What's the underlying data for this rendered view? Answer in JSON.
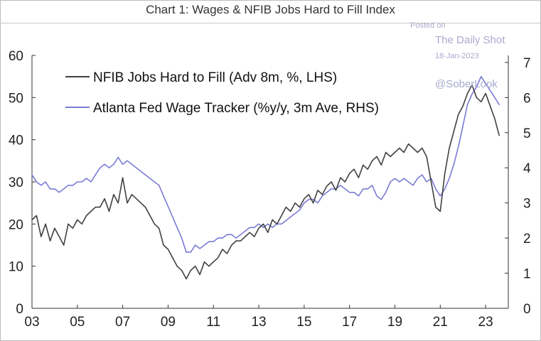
{
  "watermark": {
    "posted_on": "Posted on",
    "source": "The Daily Shot",
    "date": "18-Jan-2023",
    "handle": "@SoberLook"
  },
  "chart_data": {
    "type": "line",
    "title": "Chart 1: Wages & NFIB Jobs Hard to Fill Index",
    "x_range": [
      2003.0,
      2024.0
    ],
    "x_ticks": [
      2003,
      2005,
      2007,
      2009,
      2011,
      2013,
      2015,
      2017,
      2019,
      2021,
      2023
    ],
    "x_tick_labels": [
      "03",
      "05",
      "07",
      "09",
      "11",
      "13",
      "15",
      "17",
      "19",
      "21",
      "23"
    ],
    "y_left": {
      "range": [
        0,
        60
      ],
      "ticks": [
        0,
        10,
        20,
        30,
        40,
        50,
        60
      ],
      "tick_labels": [
        "0",
        "10",
        "20",
        "30",
        "40",
        "50",
        "60"
      ]
    },
    "y_right": {
      "range": [
        0,
        7.2
      ],
      "ticks": [
        0,
        1,
        2,
        3,
        4,
        5,
        6,
        7
      ],
      "tick_labels": [
        "0",
        "1",
        "2",
        "3",
        "4",
        "5",
        "6",
        "7"
      ]
    },
    "legend_position": "top-left",
    "series": [
      {
        "name": "NFIB Jobs Hard to Fill (Adv 8m, %, LHS)",
        "axis": "left",
        "color": "#404040",
        "x": [
          2003.0,
          2003.2,
          2003.4,
          2003.6,
          2003.8,
          2004.0,
          2004.2,
          2004.4,
          2004.6,
          2004.8,
          2005.0,
          2005.2,
          2005.4,
          2005.6,
          2005.8,
          2006.0,
          2006.2,
          2006.4,
          2006.6,
          2006.8,
          2007.0,
          2007.2,
          2007.4,
          2007.6,
          2007.8,
          2008.0,
          2008.2,
          2008.4,
          2008.6,
          2008.8,
          2009.0,
          2009.2,
          2009.4,
          2009.6,
          2009.8,
          2010.0,
          2010.2,
          2010.4,
          2010.6,
          2010.8,
          2011.0,
          2011.2,
          2011.4,
          2011.6,
          2011.8,
          2012.0,
          2012.2,
          2012.4,
          2012.6,
          2012.8,
          2013.0,
          2013.2,
          2013.4,
          2013.6,
          2013.8,
          2014.0,
          2014.2,
          2014.4,
          2014.6,
          2014.8,
          2015.0,
          2015.2,
          2015.4,
          2015.6,
          2015.8,
          2016.0,
          2016.2,
          2016.4,
          2016.6,
          2016.8,
          2017.0,
          2017.2,
          2017.4,
          2017.6,
          2017.8,
          2018.0,
          2018.2,
          2018.4,
          2018.6,
          2018.8,
          2019.0,
          2019.2,
          2019.4,
          2019.6,
          2019.8,
          2020.0,
          2020.2,
          2020.4,
          2020.6,
          2020.8,
          2021.0,
          2021.2,
          2021.4,
          2021.6,
          2021.8,
          2022.0,
          2022.2,
          2022.4,
          2022.6,
          2022.8,
          2023.0,
          2023.2,
          2023.4,
          2023.6
        ],
        "values": [
          21,
          22,
          17,
          20,
          16,
          19,
          17,
          15,
          20,
          19,
          21,
          20,
          22,
          23,
          24,
          24,
          26,
          23,
          27,
          25,
          31,
          25,
          27,
          26,
          25,
          24,
          22,
          20,
          19,
          15,
          14,
          12,
          10,
          9,
          7,
          9,
          10,
          8,
          11,
          10,
          11,
          12,
          14,
          13,
          15,
          16,
          16,
          17,
          18,
          17,
          19,
          20,
          18,
          21,
          20,
          22,
          24,
          23,
          25,
          24,
          26,
          27,
          25,
          28,
          27,
          29,
          30,
          28,
          31,
          30,
          32,
          33,
          31,
          34,
          33,
          35,
          36,
          34,
          37,
          36,
          37,
          38,
          37,
          39,
          38,
          37,
          38,
          36,
          30,
          24,
          23,
          32,
          38,
          42,
          46,
          48,
          51,
          53,
          50,
          49,
          51,
          48,
          45,
          41
        ]
      },
      {
        "name": "Atlanta Fed Wage Tracker (%y/y, 3m Ave, RHS)",
        "axis": "right",
        "color": "#7b7bd6",
        "x": [
          2003.0,
          2003.2,
          2003.4,
          2003.6,
          2003.8,
          2004.0,
          2004.2,
          2004.4,
          2004.6,
          2004.8,
          2005.0,
          2005.2,
          2005.4,
          2005.6,
          2005.8,
          2006.0,
          2006.2,
          2006.4,
          2006.6,
          2006.8,
          2007.0,
          2007.2,
          2007.4,
          2007.6,
          2007.8,
          2008.0,
          2008.2,
          2008.4,
          2008.6,
          2008.8,
          2009.0,
          2009.2,
          2009.4,
          2009.6,
          2009.8,
          2010.0,
          2010.2,
          2010.4,
          2010.6,
          2010.8,
          2011.0,
          2011.2,
          2011.4,
          2011.6,
          2011.8,
          2012.0,
          2012.2,
          2012.4,
          2012.6,
          2012.8,
          2013.0,
          2013.2,
          2013.4,
          2013.6,
          2013.8,
          2014.0,
          2014.2,
          2014.4,
          2014.6,
          2014.8,
          2015.0,
          2015.2,
          2015.4,
          2015.6,
          2015.8,
          2016.0,
          2016.2,
          2016.4,
          2016.6,
          2016.8,
          2017.0,
          2017.2,
          2017.4,
          2017.6,
          2017.8,
          2018.0,
          2018.2,
          2018.4,
          2018.6,
          2018.8,
          2019.0,
          2019.2,
          2019.4,
          2019.6,
          2019.8,
          2020.0,
          2020.2,
          2020.4,
          2020.6,
          2020.8,
          2021.0,
          2021.2,
          2021.4,
          2021.6,
          2021.8,
          2022.0,
          2022.2,
          2022.4,
          2022.6,
          2022.8,
          2023.0,
          2023.2,
          2023.4,
          2023.6
        ],
        "values": [
          3.8,
          3.6,
          3.5,
          3.6,
          3.4,
          3.4,
          3.3,
          3.4,
          3.5,
          3.5,
          3.6,
          3.6,
          3.7,
          3.6,
          3.8,
          4.0,
          4.1,
          4.0,
          4.1,
          4.3,
          4.1,
          4.2,
          4.1,
          4.0,
          3.9,
          3.8,
          3.7,
          3.6,
          3.5,
          3.2,
          2.9,
          2.6,
          2.3,
          2.0,
          1.6,
          1.6,
          1.8,
          1.7,
          1.8,
          1.9,
          1.9,
          2.0,
          2.0,
          2.1,
          2.1,
          2.0,
          2.1,
          2.2,
          2.3,
          2.3,
          2.4,
          2.3,
          2.4,
          2.3,
          2.4,
          2.4,
          2.5,
          2.6,
          2.7,
          2.8,
          3.0,
          3.1,
          3.1,
          3.0,
          3.2,
          3.3,
          3.4,
          3.4,
          3.5,
          3.4,
          3.3,
          3.3,
          3.2,
          3.4,
          3.4,
          3.5,
          3.2,
          3.1,
          3.3,
          3.6,
          3.7,
          3.6,
          3.7,
          3.6,
          3.5,
          3.7,
          3.8,
          3.6,
          3.7,
          3.4,
          3.2,
          3.4,
          3.7,
          4.1,
          4.6,
          5.2,
          5.8,
          6.1,
          6.3,
          6.6,
          6.4,
          6.2,
          6.0,
          5.8
        ]
      }
    ]
  }
}
